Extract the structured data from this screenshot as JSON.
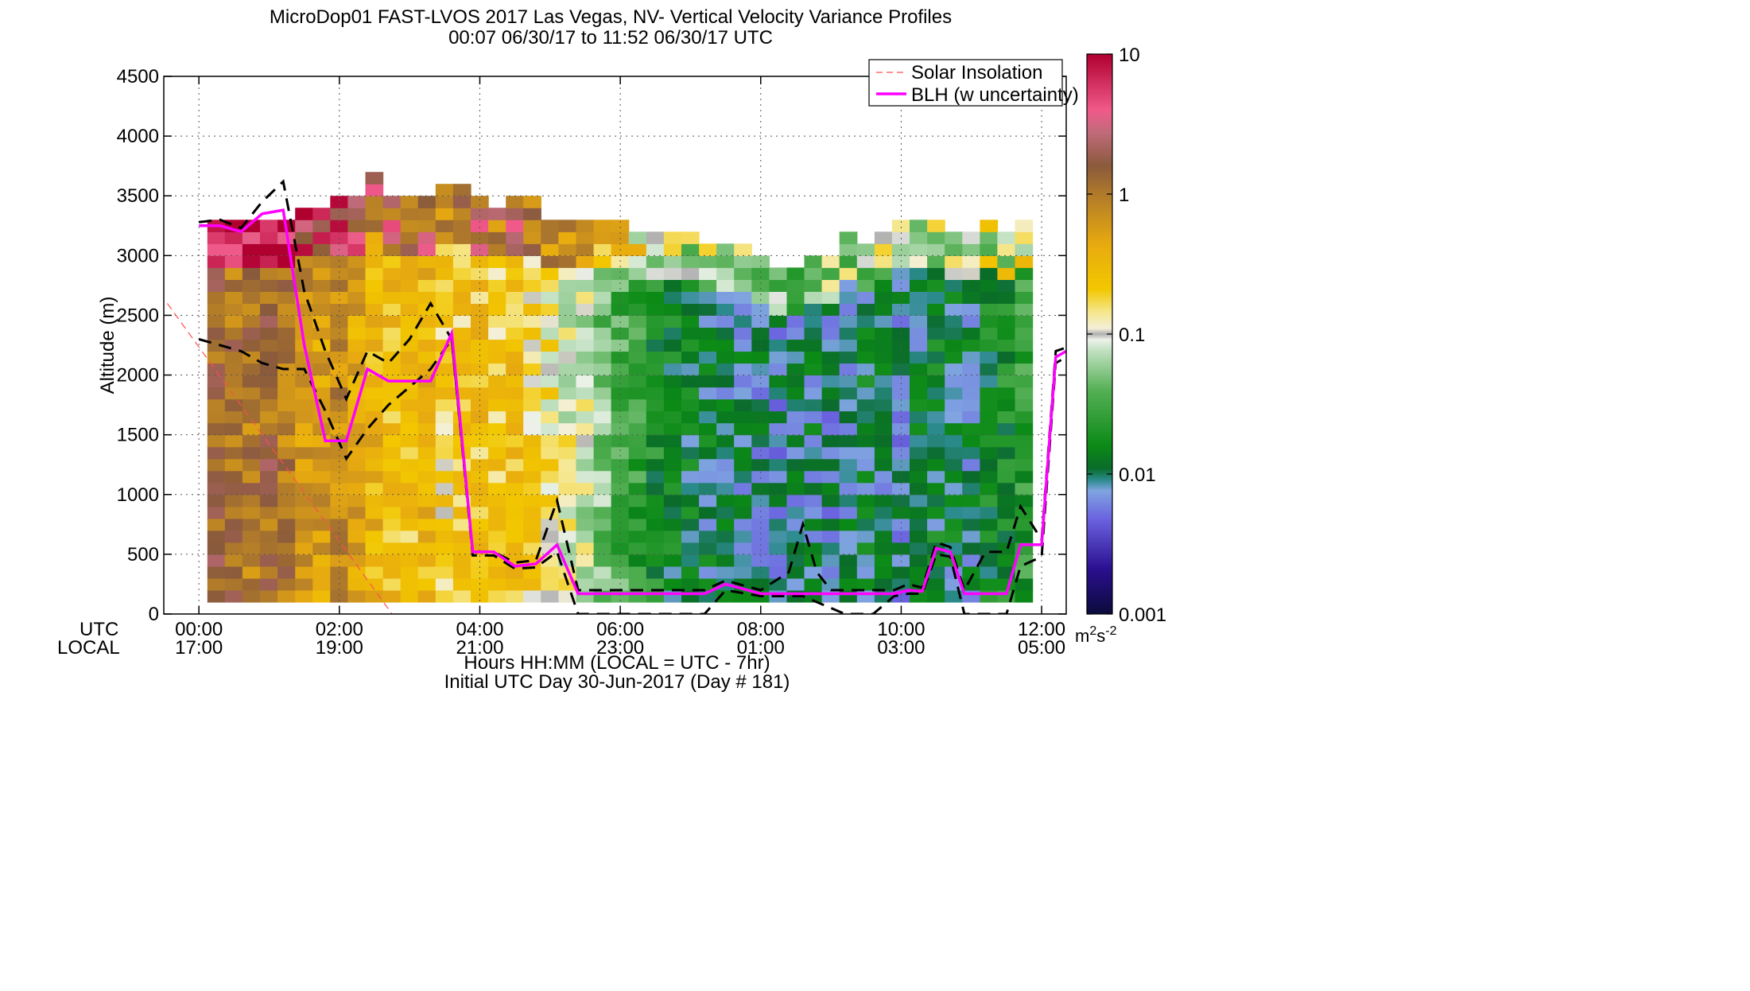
{
  "chart_data": {
    "type": "heatmap",
    "title": "MicroDop01 FAST-LVOS 2017 Las Vegas, NV- Vertical Velocity Variance Profiles",
    "subtitle": "00:07 06/30/17 to 11:52 06/30/17  UTC",
    "xlabel": "Hours HH:MM  (LOCAL = UTC - 7hr)",
    "xlabel2": "Initial UTC Day 30-Jun-2017 (Day # 181)",
    "ylabel": "Altitude (m)",
    "row_label_utc": "UTC",
    "row_label_local": "LOCAL",
    "xlim_hours": [
      -0.5,
      12.35
    ],
    "ylim": [
      0,
      4500
    ],
    "x_ticks": [
      {
        "hour": 0,
        "utc": "00:00",
        "local": "17:00"
      },
      {
        "hour": 2,
        "utc": "02:00",
        "local": "19:00"
      },
      {
        "hour": 4,
        "utc": "04:00",
        "local": "21:00"
      },
      {
        "hour": 6,
        "utc": "06:00",
        "local": "23:00"
      },
      {
        "hour": 8,
        "utc": "08:00",
        "local": "01:00"
      },
      {
        "hour": 10,
        "utc": "10:00",
        "local": "03:00"
      },
      {
        "hour": 12,
        "utc": "12:00",
        "local": "05:00"
      }
    ],
    "y_ticks": [
      0,
      500,
      1000,
      1500,
      2000,
      2500,
      3000,
      3500,
      4000,
      4500
    ],
    "grid": true,
    "legend_position": "top-right",
    "legend": [
      {
        "name": "Solar Insolation",
        "color": "#ff4d4d",
        "style": "dashed"
      },
      {
        "name": "BLH (w uncertainty)",
        "color": "#ff00ff",
        "style": "solid"
      }
    ],
    "colorbar": {
      "scale": "log",
      "range": [
        0.001,
        10
      ],
      "tick_labels": [
        "0.001",
        "0.01",
        "0.1",
        "1",
        "10"
      ],
      "unit_base": "m",
      "unit_exp1": "2",
      "unit_mid": "s",
      "unit_exp2": "-2"
    },
    "heatmap": {
      "time_start_hour": 0.12,
      "time_step_hour": 0.25,
      "altitude_start_m": 100,
      "altitude_step_m": 100,
      "columns_log10_profile": [
        {
          "top": 3300,
          "base": 0.1
        },
        {
          "top": 3300,
          "base": 0.05
        },
        {
          "top": 3300,
          "base": 0.0
        },
        {
          "top": 3300,
          "base": 0.1
        },
        {
          "top": 3300,
          "base": 0.0
        },
        {
          "top": 3400,
          "base": -0.2
        },
        {
          "top": 3400,
          "base": -0.3
        },
        {
          "top": 3500,
          "base": -0.1
        },
        {
          "top": 3500,
          "base": -0.35
        },
        {
          "top": 3700,
          "base": -0.5
        },
        {
          "top": 3500,
          "base": -0.55
        },
        {
          "top": 3500,
          "base": -0.6
        },
        {
          "top": 3500,
          "base": -0.5
        },
        {
          "top": 3600,
          "base": -0.7
        },
        {
          "top": 3600,
          "base": -0.65
        },
        {
          "top": 3500,
          "base": -0.6
        },
        {
          "top": 3400,
          "base": -0.7
        },
        {
          "top": 3500,
          "base": -0.6
        },
        {
          "top": 3500,
          "base": -0.75
        },
        {
          "top": 3300,
          "base": -0.85
        },
        {
          "top": 3300,
          "base": -0.95
        },
        {
          "top": 3300,
          "base": -1.05
        },
        {
          "top": 3300,
          "base": -1.3
        },
        {
          "top": 3300,
          "base": -1.45
        },
        {
          "top": 3200,
          "base": -1.6
        },
        {
          "top": 3200,
          "base": -1.75
        },
        {
          "top": 3200,
          "base": -1.85
        },
        {
          "top": 3200,
          "base": -1.9
        },
        {
          "top": 3100,
          "base": -1.95
        },
        {
          "top": 3100,
          "base": -2.0
        },
        {
          "top": 3100,
          "base": -2.05
        },
        {
          "top": 3000,
          "base": -2.05
        },
        {
          "top": 2900,
          "base": -2.1
        },
        {
          "top": 2900,
          "base": -2.05
        },
        {
          "top": 3000,
          "base": -2.0
        },
        {
          "top": 3000,
          "base": -2.1
        },
        {
          "top": 3200,
          "base": -2.05
        },
        {
          "top": 3100,
          "base": -1.95
        },
        {
          "top": 3200,
          "base": -2.0
        },
        {
          "top": 3300,
          "base": -2.1
        },
        {
          "top": 3300,
          "base": -1.95
        },
        {
          "top": 3300,
          "base": -1.9
        },
        {
          "top": 3200,
          "base": -1.95
        },
        {
          "top": 3200,
          "base": -2.0
        },
        {
          "top": 3300,
          "base": -1.85
        },
        {
          "top": 3200,
          "base": -1.75
        },
        {
          "top": 3300,
          "base": -1.6
        }
      ]
    },
    "solar_insolation": {
      "x": [
        -0.45,
        2.75
      ],
      "y": [
        2600,
        0
      ]
    },
    "blh": {
      "x": [
        0.0,
        0.3,
        0.6,
        0.9,
        1.2,
        1.5,
        1.8,
        2.1,
        2.4,
        2.7,
        3.0,
        3.3,
        3.6,
        3.9,
        4.2,
        4.5,
        4.8,
        5.1,
        5.4,
        6.0,
        6.6,
        7.2,
        7.5,
        8.0,
        8.6,
        9.2,
        9.6,
        9.9,
        10.1,
        10.3,
        10.5,
        10.7,
        10.9,
        11.2,
        11.5,
        11.7,
        12.0,
        12.2,
        12.35
      ],
      "y": [
        3250,
        3250,
        3200,
        3350,
        3380,
        2250,
        1450,
        1450,
        2050,
        1950,
        1950,
        1950,
        2350,
        520,
        520,
        400,
        420,
        580,
        170,
        170,
        170,
        170,
        250,
        170,
        170,
        170,
        170,
        170,
        200,
        190,
        550,
        520,
        170,
        170,
        170,
        580,
        580,
        2150,
        2200
      ]
    },
    "blh_upper": {
      "x": [
        0.0,
        0.3,
        0.6,
        0.9,
        1.2,
        1.5,
        1.8,
        2.1,
        2.4,
        2.7,
        3.0,
        3.3,
        3.6,
        3.9,
        4.2,
        4.5,
        4.8,
        5.1,
        5.4,
        6.0,
        6.6,
        7.2,
        7.5,
        8.0,
        8.4,
        8.6,
        8.8,
        9.0,
        9.6,
        9.9,
        10.1,
        10.3,
        10.5,
        10.7,
        10.9,
        11.2,
        11.5,
        11.7,
        12.0,
        12.2,
        12.35
      ],
      "y": [
        3280,
        3300,
        3230,
        3450,
        3620,
        2700,
        2200,
        1800,
        2200,
        2100,
        2300,
        2600,
        2300,
        520,
        520,
        430,
        450,
        950,
        200,
        200,
        200,
        200,
        280,
        200,
        350,
        750,
        350,
        200,
        200,
        200,
        250,
        220,
        600,
        560,
        200,
        520,
        520,
        900,
        620,
        2200,
        2230
      ]
    },
    "blh_lower": {
      "x": [
        0.0,
        0.3,
        0.6,
        0.9,
        1.2,
        1.5,
        1.8,
        2.1,
        2.4,
        2.7,
        3.0,
        3.3,
        3.6,
        3.9,
        4.2,
        4.5,
        4.8,
        5.1,
        5.4,
        5.8,
        6.0,
        6.6,
        7.2,
        7.5,
        8.0,
        8.6,
        9.2,
        9.6,
        9.9,
        10.1,
        10.3,
        10.5,
        10.7,
        10.9,
        11.2,
        11.5,
        11.7,
        12.0,
        12.2,
        12.35
      ],
      "y": [
        2300,
        2250,
        2200,
        2100,
        2050,
        2050,
        1700,
        1300,
        1550,
        1750,
        1900,
        2050,
        2300,
        490,
        490,
        380,
        390,
        520,
        0,
        0,
        0,
        0,
        0,
        200,
        150,
        150,
        0,
        0,
        150,
        170,
        170,
        500,
        480,
        0,
        0,
        0,
        400,
        480,
        2100,
        2150
      ]
    }
  }
}
